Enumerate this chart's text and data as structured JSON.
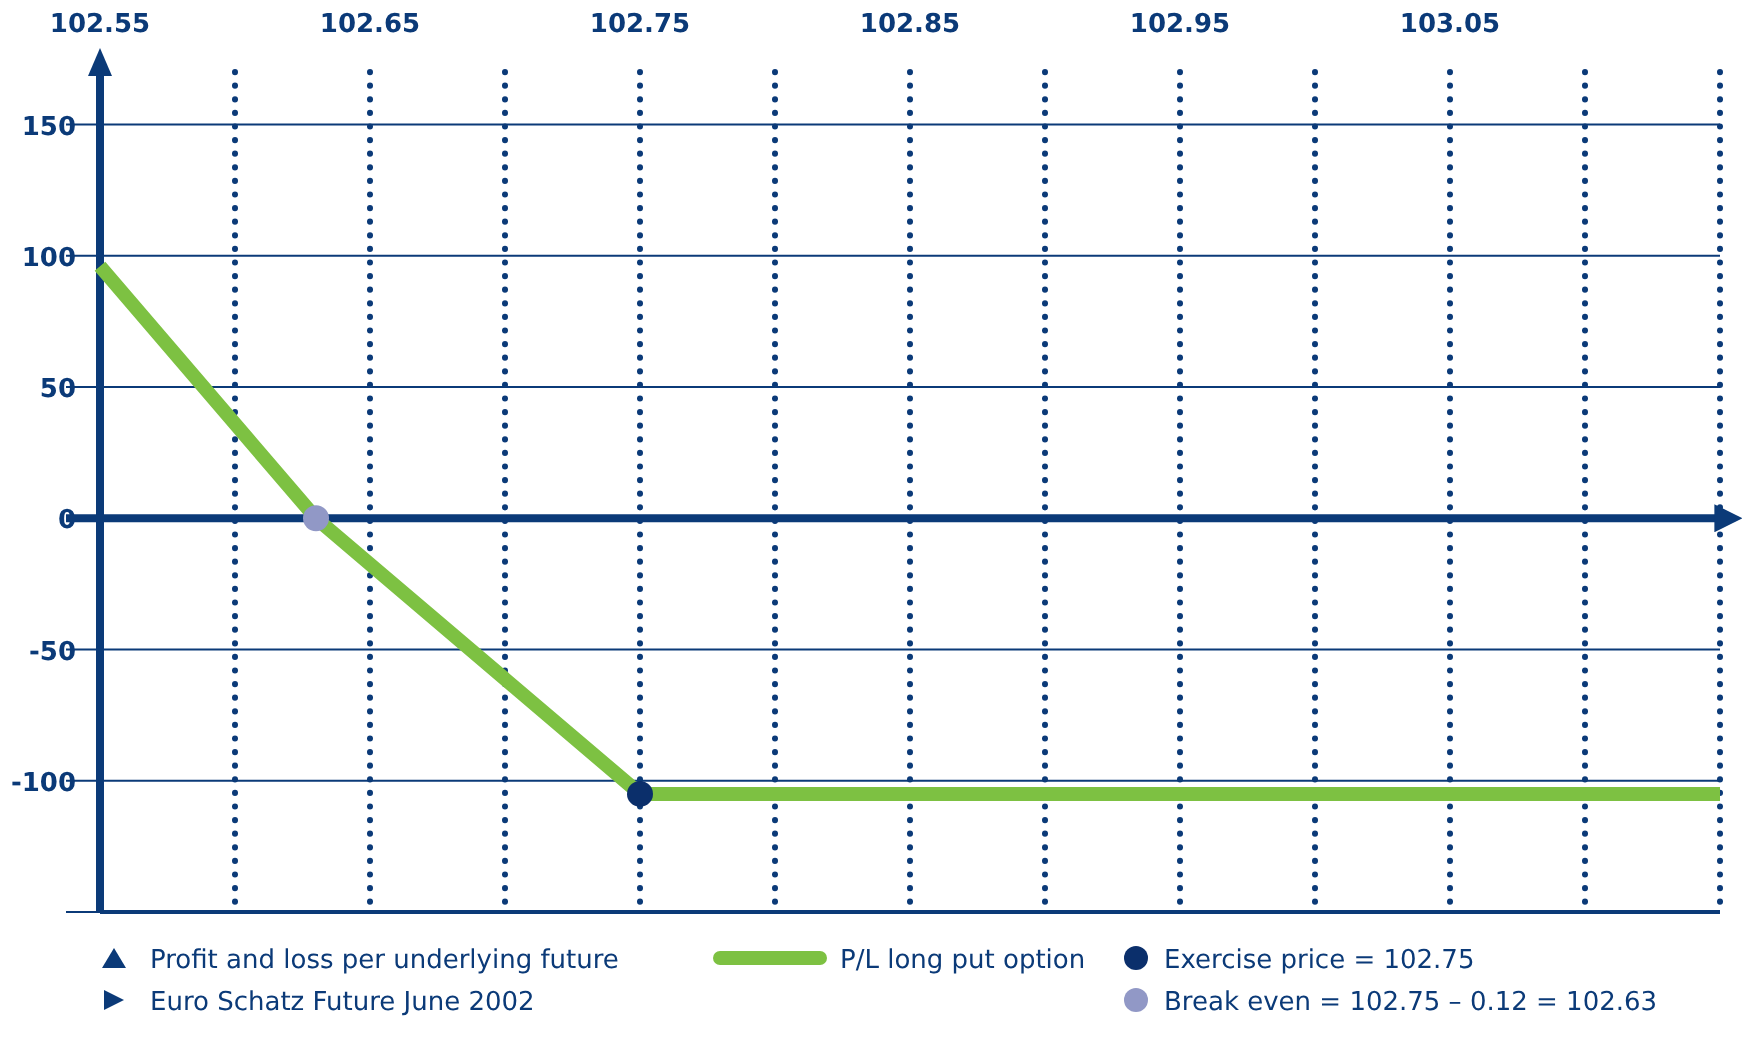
{
  "chart_data": {
    "type": "line",
    "annotations": [
      "Profit and loss per underlying future",
      "Euro Schatz Future June 2002"
    ],
    "xlim": [
      102.55,
      103.15
    ],
    "ylim": [
      -150,
      170
    ],
    "xticks": [
      102.55,
      {
        "value": 102.6,
        "label": null
      },
      102.65,
      {
        "value": 102.7,
        "label": null
      },
      102.75,
      {
        "value": 102.8,
        "label": null
      },
      102.85,
      {
        "value": 102.9,
        "label": null
      },
      102.95,
      {
        "value": 103.0,
        "label": null
      },
      103.05,
      {
        "value": 103.1,
        "label": null
      },
      {
        "value": 103.15,
        "label": null
      }
    ],
    "yticks": [
      {
        "value": -150,
        "label": null
      },
      -100,
      -50,
      0,
      50,
      100,
      150
    ],
    "grid": true,
    "legend": "bottom",
    "ref_lines": [
      {
        "axis": "y",
        "value": 0,
        "color": "#0b3a78"
      }
    ],
    "series": [
      {
        "name": "P/L long put option",
        "color": "#7dc142",
        "x": [
          102.55,
          102.63,
          102.75,
          103.15
        ],
        "values": [
          96,
          0,
          -105,
          -105
        ]
      },
      {
        "name": "Exercise price = 102.75",
        "type": "scatter",
        "marker": "circle",
        "color": "#0b2f6b",
        "x": [
          102.75
        ],
        "values": [
          -105
        ]
      },
      {
        "name": "Break even = 102.75 – 0.12 = 102.63",
        "type": "scatter",
        "marker": "circle",
        "color": "#9198c6",
        "x": [
          102.63
        ],
        "values": [
          0
        ]
      }
    ]
  }
}
